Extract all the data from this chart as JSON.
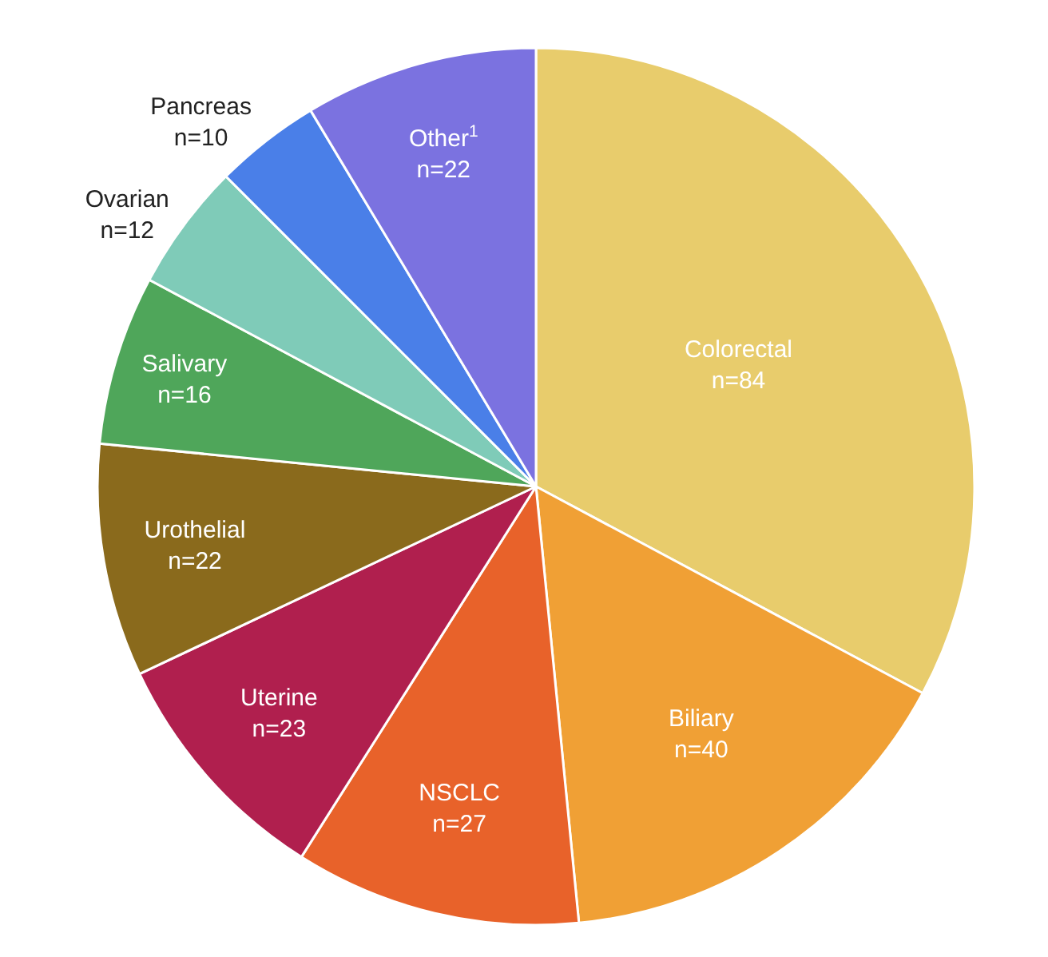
{
  "chart_data": {
    "type": "pie",
    "categories": [
      "Colorectal",
      "Biliary",
      "NSCLC",
      "Uterine",
      "Urothelial",
      "Salivary",
      "Ovarian",
      "Pancreas",
      "Other$^{1}$"
    ],
    "values": [
      84,
      40,
      27,
      23,
      22,
      16,
      12,
      10,
      22
    ],
    "value_labels": [
      "n=84",
      "n=40",
      "n=27",
      "n=23",
      "n=22",
      "n=16",
      "n=12",
      "n=10",
      "n=22"
    ],
    "colors": [
      "#e8cc6c",
      "#f0a035",
      "#e8622a",
      "#b01f4e",
      "#8a6a1c",
      "#4fa65a",
      "#7fcbb8",
      "#4a7fe8",
      "#7b72e0"
    ],
    "legend": false
  }
}
